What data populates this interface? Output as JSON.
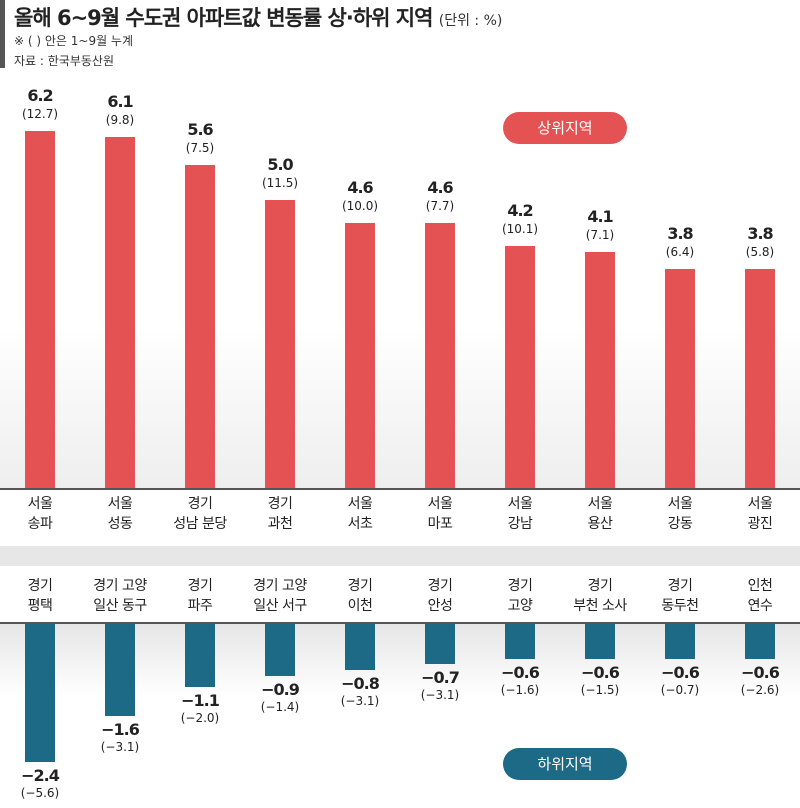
{
  "title": "올해 6~9월 수도권 아파트값 변동률 상·하위 지역",
  "unit": "(단위 : %)",
  "note": "※ ( ) 안은 1~9월 누계",
  "source": "자료 : 한국부동산원",
  "colors": {
    "top": "#e55254",
    "bottom": "#1c6a85"
  },
  "chart_data": [
    {
      "type": "bar",
      "legend": "상위지역",
      "legend_placement": "top-right",
      "categories": [
        [
          "서울",
          "송파"
        ],
        [
          "서울",
          "성동"
        ],
        [
          "경기",
          "성남 분당"
        ],
        [
          "경기",
          "과천"
        ],
        [
          "서울",
          "서초"
        ],
        [
          "서울",
          "마포"
        ],
        [
          "서울",
          "강남"
        ],
        [
          "서울",
          "용산"
        ],
        [
          "서울",
          "강동"
        ],
        [
          "서울",
          "광진"
        ]
      ],
      "values": [
        6.2,
        6.1,
        5.6,
        5.0,
        4.6,
        4.6,
        4.2,
        4.1,
        3.8,
        3.8
      ],
      "value_labels": [
        "6.2",
        "6.1",
        "5.6",
        "5.0",
        "4.6",
        "4.6",
        "4.2",
        "4.1",
        "3.8",
        "3.8"
      ],
      "cumulative_labels": [
        "(12.7)",
        "(9.8)",
        "(7.5)",
        "(11.5)",
        "(10.0)",
        "(7.7)",
        "(10.1)",
        "(7.1)",
        "(6.4)",
        "(5.8)"
      ],
      "cumulative": [
        12.7,
        9.8,
        7.5,
        11.5,
        10.0,
        7.7,
        10.1,
        7.1,
        6.4,
        5.8
      ]
    },
    {
      "type": "bar",
      "legend": "하위지역",
      "legend_placement": "bottom-right",
      "categories": [
        [
          "경기",
          "평택"
        ],
        [
          "경기 고양",
          "일산 동구"
        ],
        [
          "경기",
          "파주"
        ],
        [
          "경기 고양",
          "일산 서구"
        ],
        [
          "경기",
          "이천"
        ],
        [
          "경기",
          "안성"
        ],
        [
          "경기",
          "고양"
        ],
        [
          "경기",
          "부천 소사"
        ],
        [
          "경기",
          "동두천"
        ],
        [
          "인천",
          "연수"
        ]
      ],
      "values": [
        -2.4,
        -1.6,
        -1.1,
        -0.9,
        -0.8,
        -0.7,
        -0.6,
        -0.6,
        -0.6,
        -0.6
      ],
      "value_labels": [
        "−2.4",
        "−1.6",
        "−1.1",
        "−0.9",
        "−0.8",
        "−0.7",
        "−0.6",
        "−0.6",
        "−0.6",
        "−0.6"
      ],
      "cumulative_labels": [
        "(−5.6)",
        "(−3.1)",
        "(−2.0)",
        "(−1.4)",
        "(−3.1)",
        "(−3.1)",
        "(−1.6)",
        "(−1.5)",
        "(−0.7)",
        "(−2.6)"
      ],
      "cumulative": [
        -5.6,
        -3.1,
        -2.0,
        -1.4,
        -3.1,
        -3.1,
        -1.6,
        -1.5,
        -0.7,
        -2.6
      ]
    }
  ]
}
